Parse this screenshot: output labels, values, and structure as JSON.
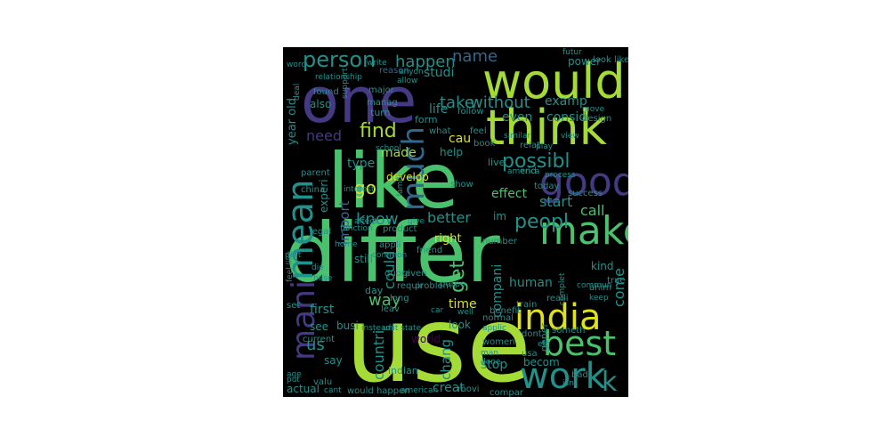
{
  "palette": {
    "background": "#000000",
    "yellow": "#dde318",
    "lime": "#a5db36",
    "green": "#4ac16d",
    "teal": "#21918c",
    "blue": "#31688e",
    "indigo": "#443983",
    "purple": "#440154"
  },
  "words": [
    {
      "text": "use",
      "color": "lime"
    },
    {
      "text": "differ",
      "color": "green"
    },
    {
      "text": "like",
      "color": "green"
    },
    {
      "text": "one",
      "color": "indigo"
    },
    {
      "text": "would",
      "color": "lime"
    },
    {
      "text": "think",
      "color": "lime"
    },
    {
      "text": "mean",
      "color": "teal"
    },
    {
      "text": "much",
      "color": "blue"
    },
    {
      "text": "good",
      "color": "indigo"
    },
    {
      "text": "make",
      "color": "green"
    },
    {
      "text": "india",
      "color": "yellow"
    },
    {
      "text": "best",
      "color": "green"
    },
    {
      "text": "work",
      "color": "teal"
    },
    {
      "text": "k",
      "color": "teal"
    },
    {
      "text": "mani",
      "color": "indigo"
    },
    {
      "text": "person",
      "color": "teal"
    },
    {
      "text": "happen",
      "color": "teal"
    },
    {
      "text": "name",
      "color": "blue"
    },
    {
      "text": "studi",
      "color": "teal"
    },
    {
      "text": "take",
      "color": "teal"
    },
    {
      "text": "without",
      "color": "teal"
    },
    {
      "text": "examp",
      "color": "teal"
    },
    {
      "text": "life",
      "color": "teal"
    },
    {
      "text": "even",
      "color": "teal"
    },
    {
      "text": "consid",
      "color": "teal"
    },
    {
      "text": "find",
      "color": "lime"
    },
    {
      "text": "need",
      "color": "indigo"
    },
    {
      "text": "made",
      "color": "lime"
    },
    {
      "text": "cau",
      "color": "yellow"
    },
    {
      "text": "help",
      "color": "teal"
    },
    {
      "text": "possibl",
      "color": "teal"
    },
    {
      "text": "type",
      "color": "teal"
    },
    {
      "text": "develop",
      "color": "yellow"
    },
    {
      "text": "go",
      "color": "yellow"
    },
    {
      "text": "effect",
      "color": "green"
    },
    {
      "text": "start",
      "color": "teal"
    },
    {
      "text": "call",
      "color": "green"
    },
    {
      "text": "know",
      "color": "teal"
    },
    {
      "text": "better",
      "color": "teal"
    },
    {
      "text": "im",
      "color": "teal"
    },
    {
      "text": "peopl",
      "color": "teal"
    },
    {
      "text": "right",
      "color": "yellow"
    },
    {
      "text": "import",
      "color": "blue"
    },
    {
      "text": "could",
      "color": "teal"
    },
    {
      "text": "get",
      "color": "green"
    },
    {
      "text": "compani",
      "color": "teal"
    },
    {
      "text": "human",
      "color": "teal"
    },
    {
      "text": "come",
      "color": "teal"
    },
    {
      "text": "kind",
      "color": "teal"
    },
    {
      "text": "way",
      "color": "green"
    },
    {
      "text": "time",
      "color": "yellow"
    },
    {
      "text": "first",
      "color": "teal"
    },
    {
      "text": "us",
      "color": "teal"
    },
    {
      "text": "see",
      "color": "teal"
    },
    {
      "text": "say",
      "color": "teal"
    },
    {
      "text": "countri",
      "color": "teal"
    },
    {
      "text": "chang",
      "color": "teal"
    },
    {
      "text": "stop",
      "color": "teal"
    },
    {
      "text": "becom",
      "color": "teal"
    },
    {
      "text": "creat",
      "color": "teal"
    },
    {
      "text": "actual",
      "color": "teal"
    },
    {
      "text": "indian",
      "color": "teal"
    },
    {
      "text": "world",
      "color": "purple"
    },
    {
      "text": "look",
      "color": "teal"
    },
    {
      "text": "gener",
      "color": "teal"
    },
    {
      "text": "busi",
      "color": "teal"
    },
    {
      "text": "still",
      "color": "teal"
    },
    {
      "text": "experi",
      "color": "teal"
    },
    {
      "text": "year old",
      "color": "teal"
    },
    {
      "text": "also",
      "color": "teal"
    },
    {
      "text": "turn",
      "color": "teal"
    },
    {
      "text": "reason",
      "color": "blue"
    },
    {
      "text": "form",
      "color": "teal"
    },
    {
      "text": "power",
      "color": "teal"
    },
    {
      "text": "futur",
      "color": "teal"
    },
    {
      "text": "relationship",
      "color": "teal"
    },
    {
      "text": "word",
      "color": "teal"
    },
    {
      "text": "found",
      "color": "teal"
    },
    {
      "text": "major",
      "color": "teal"
    },
    {
      "text": "manag",
      "color": "teal"
    },
    {
      "text": "design",
      "color": "teal"
    },
    {
      "text": "move",
      "color": "teal"
    },
    {
      "text": "follow",
      "color": "teal"
    },
    {
      "text": "what",
      "color": "teal"
    },
    {
      "text": "feel",
      "color": "teal"
    },
    {
      "text": "book",
      "color": "teal"
    },
    {
      "text": "live",
      "color": "teal"
    },
    {
      "text": "relat",
      "color": "teal"
    },
    {
      "text": "end",
      "color": "teal"
    },
    {
      "text": "play",
      "color": "teal"
    },
    {
      "text": "today",
      "color": "teal"
    },
    {
      "text": "success",
      "color": "teal"
    },
    {
      "text": "show",
      "color": "teal"
    },
    {
      "text": "school",
      "color": "teal"
    },
    {
      "text": "parent",
      "color": "teal"
    },
    {
      "text": "china",
      "color": "teal"
    },
    {
      "text": "product",
      "color": "teal"
    },
    {
      "text": "appli",
      "color": "teal"
    },
    {
      "text": "friend",
      "color": "teal"
    },
    {
      "text": "common",
      "color": "teal"
    },
    {
      "text": "legal",
      "color": "teal"
    },
    {
      "text": "home",
      "color": "teal"
    },
    {
      "text": "quora",
      "color": "teal"
    },
    {
      "text": "day",
      "color": "teal"
    },
    {
      "text": "purpo",
      "color": "teal"
    },
    {
      "text": "requir",
      "color": "teal"
    },
    {
      "text": "number",
      "color": "teal"
    },
    {
      "text": "part",
      "color": "teal"
    },
    {
      "text": "die",
      "color": "teal"
    },
    {
      "text": "base",
      "color": "teal"
    },
    {
      "text": "set",
      "color": "teal"
    },
    {
      "text": "leav",
      "color": "teal"
    },
    {
      "text": "given",
      "color": "teal"
    },
    {
      "text": "long",
      "color": "teal"
    },
    {
      "text": "normal",
      "color": "teal"
    },
    {
      "text": "problem",
      "color": "teal"
    },
    {
      "text": "train",
      "color": "teal"
    },
    {
      "text": "benefit",
      "color": "teal"
    },
    {
      "text": "realli",
      "color": "teal"
    },
    {
      "text": "anim",
      "color": "teal"
    },
    {
      "text": "keep",
      "color": "teal"
    },
    {
      "text": "true",
      "color": "teal"
    },
    {
      "text": "current",
      "color": "teal"
    },
    {
      "text": "women",
      "color": "teal"
    },
    {
      "text": "man",
      "color": "teal"
    },
    {
      "text": "done",
      "color": "teal"
    },
    {
      "text": "age",
      "color": "teal"
    },
    {
      "text": "put",
      "color": "teal"
    },
    {
      "text": "valu",
      "color": "teal"
    },
    {
      "text": "cant",
      "color": "teal"
    },
    {
      "text": "would happen",
      "color": "teal"
    },
    {
      "text": "american",
      "color": "teal"
    },
    {
      "text": "movi",
      "color": "teal"
    },
    {
      "text": "compar",
      "color": "teal"
    },
    {
      "text": "bad",
      "color": "teal"
    },
    {
      "text": "isnt",
      "color": "teal"
    },
    {
      "text": "dont",
      "color": "teal"
    },
    {
      "text": "etc",
      "color": "teal"
    },
    {
      "text": "usa",
      "color": "teal"
    },
    {
      "text": "someth",
      "color": "teal"
    },
    {
      "text": "support",
      "color": "teal"
    },
    {
      "text": "allow",
      "color": "teal"
    },
    {
      "text": "view",
      "color": "teal"
    },
    {
      "text": "similar",
      "color": "teal"
    },
    {
      "text": "america",
      "color": "teal"
    },
    {
      "text": "anyon",
      "color": "teal"
    },
    {
      "text": "interest",
      "color": "teal"
    },
    {
      "text": "famili",
      "color": "teal"
    },
    {
      "text": "process",
      "color": "teal"
    },
    {
      "text": "look like",
      "color": "teal"
    },
    {
      "text": "well",
      "color": "teal"
    },
    {
      "text": "feel like",
      "color": "teal"
    },
    {
      "text": "function",
      "color": "teal"
    },
    {
      "text": "write",
      "color": "teal"
    },
    {
      "text": "unit state",
      "color": "teal"
    },
    {
      "text": "instead",
      "color": "teal"
    },
    {
      "text": "applic",
      "color": "teal"
    },
    {
      "text": "complet",
      "color": "teal"
    },
    {
      "text": "commun",
      "color": "teal"
    },
    {
      "text": "car",
      "color": "teal"
    },
    {
      "text": "affect",
      "color": "teal"
    },
    {
      "text": "give",
      "color": "teal"
    },
    {
      "text": "deal",
      "color": "teal"
    }
  ]
}
